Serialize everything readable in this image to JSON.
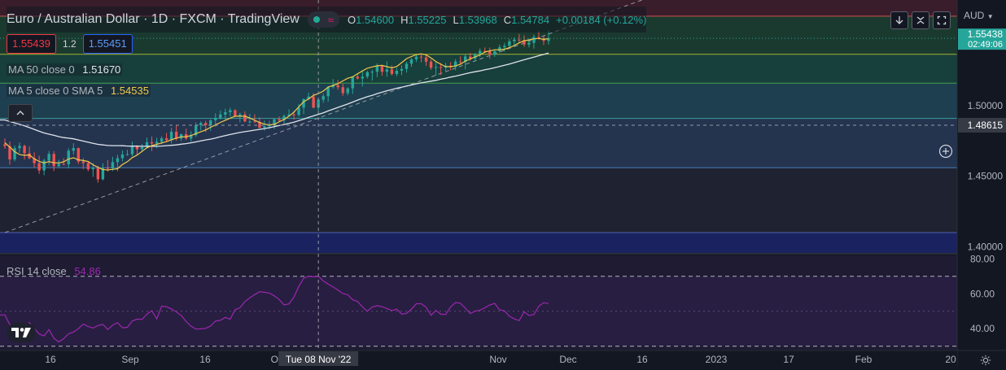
{
  "header": {
    "symbol_title": "Euro / Australian Dollar · 1D · FXCM · TradingView",
    "ohlc": {
      "o_label": "O",
      "o_value": "1.54600",
      "h_label": "H",
      "h_value": "1.55225",
      "l_label": "L",
      "l_value": "1.53968",
      "c_label": "C",
      "c_value": "1.54784",
      "change": "+0.00184 (+0.12%)"
    }
  },
  "trade": {
    "sell_price": "1.55439",
    "spread": "1.2",
    "buy_price": "1.55451"
  },
  "indicators": {
    "ma50_label": "MA 50 close 0",
    "ma50_value": "1.51670",
    "ma5_label": "MA 5 close 0 SMA 5",
    "ma5_value": "1.54535",
    "rsi_label": "RSI 14 close",
    "rsi_value": "54.86"
  },
  "currency_label": "AUD",
  "crosshair": {
    "date_label": "Tue 08 Nov '22",
    "price_label": "1.48615"
  },
  "last_price": {
    "price": "1.55438",
    "countdown": "02:49:06"
  },
  "colors": {
    "up": "#26a69a",
    "down": "#ef5350",
    "ma5": "#f2c94c",
    "ma50": "#e0e3eb",
    "rsi": "#9c27b0",
    "background": "#131722"
  },
  "chart_data": [
    {
      "type": "candlestick",
      "title": "Euro / Australian Dollar · 1D · FXCM · TradingView",
      "ylim": [
        1.395,
        1.575
      ],
      "y_ticks": [
        1.4,
        1.45,
        1.5
      ],
      "x_tick_labels": [
        "16",
        "Sep",
        "16",
        "Oct",
        "Nov",
        "Dec",
        "16",
        "2023",
        "17",
        "Feb",
        "20"
      ],
      "levels": [
        1.41,
        1.456,
        1.491,
        1.516,
        1.5365,
        1.5635
      ],
      "zone_colors": [
        "#3a1d2b",
        "#1b3a2f",
        "#173f3c",
        "#1e3f4f",
        "#24344f",
        "#1f2230",
        "#1a2360"
      ],
      "trendline": {
        "start": [
          0,
          1.41
        ],
        "end": [
          134,
          1.58
        ]
      },
      "crosshair_index": 64,
      "crosshair_price": 1.48615,
      "ohlc": [
        [
          1.4727,
          1.4768,
          1.4694,
          1.4713
        ],
        [
          1.4713,
          1.4746,
          1.4581,
          1.4619
        ],
        [
          1.4619,
          1.4717,
          1.4606,
          1.4699
        ],
        [
          1.4699,
          1.4739,
          1.4667,
          1.4715
        ],
        [
          1.4715,
          1.4724,
          1.4618,
          1.4662
        ],
        [
          1.4662,
          1.4712,
          1.462,
          1.4627
        ],
        [
          1.4627,
          1.4669,
          1.4562,
          1.4592
        ],
        [
          1.4592,
          1.4645,
          1.4517,
          1.4541
        ],
        [
          1.4541,
          1.4624,
          1.4507,
          1.4611
        ],
        [
          1.4611,
          1.4679,
          1.4578,
          1.4658
        ],
        [
          1.4658,
          1.4678,
          1.4536,
          1.4571
        ],
        [
          1.4571,
          1.4617,
          1.4564,
          1.4587
        ],
        [
          1.4587,
          1.4628,
          1.4578,
          1.4584
        ],
        [
          1.4584,
          1.4698,
          1.4555,
          1.4681
        ],
        [
          1.4681,
          1.4734,
          1.4652,
          1.4699
        ],
        [
          1.4699,
          1.4703,
          1.4586,
          1.4604
        ],
        [
          1.4604,
          1.4628,
          1.455,
          1.4593
        ],
        [
          1.4593,
          1.4602,
          1.4535,
          1.4549
        ],
        [
          1.4549,
          1.4593,
          1.4495,
          1.4557
        ],
        [
          1.4557,
          1.4572,
          1.4454,
          1.4478
        ],
        [
          1.4478,
          1.4592,
          1.4471,
          1.4559
        ],
        [
          1.4559,
          1.4614,
          1.4533,
          1.4556
        ],
        [
          1.4556,
          1.4638,
          1.4536,
          1.46
        ],
        [
          1.46,
          1.4652,
          1.4535,
          1.4628
        ],
        [
          1.4628,
          1.4682,
          1.4605,
          1.4654
        ],
        [
          1.4654,
          1.4687,
          1.4645,
          1.4656
        ],
        [
          1.4656,
          1.4745,
          1.4642,
          1.4715
        ],
        [
          1.4715,
          1.4719,
          1.4648,
          1.4691
        ],
        [
          1.4691,
          1.4728,
          1.4671,
          1.4706
        ],
        [
          1.4706,
          1.4774,
          1.4702,
          1.4741
        ],
        [
          1.4741,
          1.4782,
          1.4679,
          1.4732
        ],
        [
          1.4732,
          1.4773,
          1.4699,
          1.4744
        ],
        [
          1.4744,
          1.4782,
          1.4726,
          1.4769
        ],
        [
          1.4769,
          1.4807,
          1.4744,
          1.4755
        ],
        [
          1.4755,
          1.4843,
          1.4733,
          1.4815
        ],
        [
          1.4815,
          1.486,
          1.4752,
          1.4767
        ],
        [
          1.4767,
          1.4802,
          1.4749,
          1.4798
        ],
        [
          1.4798,
          1.4838,
          1.4757,
          1.4767
        ],
        [
          1.4767,
          1.4819,
          1.4744,
          1.4791
        ],
        [
          1.4791,
          1.4881,
          1.4779,
          1.4862
        ],
        [
          1.4862,
          1.4888,
          1.4825,
          1.4877
        ],
        [
          1.4877,
          1.4893,
          1.4813,
          1.4863
        ],
        [
          1.4863,
          1.4904,
          1.4822,
          1.4896
        ],
        [
          1.4896,
          1.4946,
          1.4851,
          1.4914
        ],
        [
          1.4914,
          1.4967,
          1.4902,
          1.4937
        ],
        [
          1.4937,
          1.4978,
          1.4901,
          1.4954
        ],
        [
          1.4954,
          1.4986,
          1.4924,
          1.4968
        ],
        [
          1.4968,
          1.4975,
          1.4923,
          1.4924
        ],
        [
          1.4924,
          1.4951,
          1.4882,
          1.4938
        ],
        [
          1.4938,
          1.4961,
          1.4884,
          1.4888
        ],
        [
          1.4888,
          1.4942,
          1.4873,
          1.4888
        ],
        [
          1.4888,
          1.4939,
          1.4879,
          1.4886
        ],
        [
          1.4886,
          1.4918,
          1.4838,
          1.4844
        ],
        [
          1.4844,
          1.4895,
          1.4822,
          1.4854
        ],
        [
          1.4854,
          1.4893,
          1.4834,
          1.4866
        ],
        [
          1.4866,
          1.4911,
          1.4835,
          1.4904
        ],
        [
          1.4904,
          1.4924,
          1.4883,
          1.4895
        ],
        [
          1.4895,
          1.4939,
          1.4874,
          1.4927
        ],
        [
          1.4927,
          1.4974,
          1.4923,
          1.4938
        ],
        [
          1.4938,
          1.4963,
          1.4901,
          1.4935
        ],
        [
          1.4935,
          1.5011,
          1.4922,
          1.4986
        ],
        [
          1.4986,
          1.5052,
          1.4941,
          1.5047
        ],
        [
          1.5047,
          1.5093,
          1.5042,
          1.5065
        ],
        [
          1.5065,
          1.509,
          1.4982,
          1.4986
        ],
        [
          1.4986,
          1.5046,
          1.4967,
          1.5043
        ],
        [
          1.5043,
          1.5085,
          1.502,
          1.5068
        ],
        [
          1.5068,
          1.5139,
          1.5029,
          1.5132
        ],
        [
          1.5132,
          1.5189,
          1.512,
          1.5145
        ],
        [
          1.5145,
          1.5182,
          1.5113,
          1.5131
        ],
        [
          1.5131,
          1.5156,
          1.507,
          1.5089
        ],
        [
          1.5089,
          1.5131,
          1.5074,
          1.5123
        ],
        [
          1.5123,
          1.5207,
          1.5083,
          1.5206
        ],
        [
          1.5206,
          1.523,
          1.5186,
          1.5193
        ],
        [
          1.5193,
          1.5242,
          1.5137,
          1.5206
        ],
        [
          1.5206,
          1.5248,
          1.5193,
          1.5237
        ],
        [
          1.5237,
          1.5256,
          1.5178,
          1.5241
        ],
        [
          1.5241,
          1.53,
          1.5203,
          1.5283
        ],
        [
          1.5283,
          1.5288,
          1.5212,
          1.5241
        ],
        [
          1.5241,
          1.5315,
          1.5206,
          1.5258
        ],
        [
          1.5258,
          1.5286,
          1.5215,
          1.5225
        ],
        [
          1.5225,
          1.5268,
          1.5209,
          1.5248
        ],
        [
          1.5248,
          1.5288,
          1.5218,
          1.5261
        ],
        [
          1.5261,
          1.5312,
          1.5235,
          1.5298
        ],
        [
          1.5298,
          1.5338,
          1.5276,
          1.5329
        ],
        [
          1.5329,
          1.5366,
          1.5311,
          1.5348
        ],
        [
          1.5348,
          1.5371,
          1.5307,
          1.5343
        ],
        [
          1.5343,
          1.5359,
          1.5283,
          1.5313
        ],
        [
          1.5313,
          1.533,
          1.5255,
          1.5269
        ],
        [
          1.5269,
          1.5305,
          1.5213,
          1.5274
        ],
        [
          1.5274,
          1.5302,
          1.5218,
          1.5271
        ],
        [
          1.5271,
          1.5304,
          1.5246,
          1.5284
        ],
        [
          1.5284,
          1.5309,
          1.5251,
          1.5275
        ],
        [
          1.5275,
          1.5331,
          1.5251,
          1.5313
        ],
        [
          1.5313,
          1.535,
          1.529,
          1.5309
        ],
        [
          1.5309,
          1.5363,
          1.5258,
          1.5349
        ],
        [
          1.5349,
          1.5375,
          1.5317,
          1.5335
        ],
        [
          1.5335,
          1.5374,
          1.5313,
          1.5364
        ],
        [
          1.5364,
          1.5407,
          1.5346,
          1.5389
        ],
        [
          1.5389,
          1.5413,
          1.5376,
          1.5386
        ],
        [
          1.5386,
          1.5412,
          1.5333,
          1.5361
        ],
        [
          1.5361,
          1.5398,
          1.5347,
          1.5387
        ],
        [
          1.5387,
          1.5434,
          1.5376,
          1.5415
        ],
        [
          1.5415,
          1.5446,
          1.5384,
          1.5425
        ],
        [
          1.5425,
          1.5473,
          1.5407,
          1.5457
        ],
        [
          1.5457,
          1.5485,
          1.5418,
          1.5469
        ],
        [
          1.5469,
          1.5509,
          1.5444,
          1.5465
        ],
        [
          1.5465,
          1.5499,
          1.5418,
          1.5434
        ],
        [
          1.5434,
          1.5477,
          1.5414,
          1.5446
        ],
        [
          1.5446,
          1.5504,
          1.5405,
          1.5487
        ],
        [
          1.5487,
          1.5528,
          1.5469,
          1.5478
        ],
        [
          1.5478,
          1.5497,
          1.5431,
          1.546
        ],
        [
          1.546,
          1.5534,
          1.5434,
          1.5478
        ]
      ],
      "ma50": [
        1.4899,
        1.4888,
        1.4878,
        1.4868,
        1.4857,
        1.4845,
        1.4832,
        1.4819,
        1.4807,
        1.4798,
        1.479,
        1.4781,
        1.4774,
        1.477,
        1.4765,
        1.4757,
        1.4749,
        1.4741,
        1.4733,
        1.4726,
        1.4722,
        1.4718,
        1.4717,
        1.4717,
        1.4716,
        1.4714,
        1.4713,
        1.4713,
        1.4712,
        1.4712,
        1.4713,
        1.4712,
        1.4714,
        1.4717,
        1.4719,
        1.4722,
        1.4727,
        1.4731,
        1.4737,
        1.4743,
        1.475,
        1.4757,
        1.4763,
        1.4771,
        1.478,
        1.4788,
        1.4796,
        1.4803,
        1.481,
        1.4816,
        1.4821,
        1.4827,
        1.4832,
        1.4838,
        1.4844,
        1.4852,
        1.4859,
        1.4867,
        1.4874,
        1.4883,
        1.4894,
        1.4905,
        1.4917,
        1.4928,
        1.4939,
        1.495,
        1.4963,
        1.4975,
        1.4988,
        1.5,
        1.5012,
        1.5026,
        1.504,
        1.5052,
        1.5064,
        1.5074,
        1.5086,
        1.5096,
        1.5106,
        1.5115,
        1.5124,
        1.5131,
        1.5139,
        1.5147,
        1.5155,
        1.5162,
        1.5168,
        1.5174,
        1.518,
        1.5188,
        1.5195,
        1.5203,
        1.521,
        1.5218,
        1.5226,
        1.5234,
        1.5241,
        1.5247,
        1.5255,
        1.5262,
        1.527,
        1.5278,
        1.5287,
        1.5296,
        1.5306,
        1.5316,
        1.5326,
        1.5335,
        1.5345,
        1.5355,
        1.5364,
        1.5374
      ],
      "ma5": [
        1.4738,
        1.4707,
        1.4674,
        1.4653,
        1.4648,
        1.4651,
        1.4623,
        1.4605,
        1.4594,
        1.4603,
        1.4595,
        1.4594,
        1.4602,
        1.4622,
        1.4631,
        1.4616,
        1.4611,
        1.4604,
        1.4581,
        1.4563,
        1.4547,
        1.4544,
        1.4549,
        1.4553,
        1.4583,
        1.4603,
        1.4632,
        1.465,
        1.4676,
        1.4702,
        1.4717,
        1.4726,
        1.4736,
        1.4745,
        1.4759,
        1.477,
        1.4779,
        1.478,
        1.4788,
        1.4802,
        1.4815,
        1.4828,
        1.4847,
        1.4864,
        1.4882,
        1.4897,
        1.4912,
        1.4925,
        1.4926,
        1.4925,
        1.4913,
        1.4897,
        1.4881,
        1.4869,
        1.4864,
        1.4868,
        1.4885,
        1.4903,
        1.4925,
        1.4954,
        1.4992,
        1.5028,
        1.5048,
        1.5073,
        1.5086,
        1.5104,
        1.5132,
        1.5144,
        1.5156,
        1.5176,
        1.5195,
        1.5205,
        1.5226,
        1.5247,
        1.5266,
        1.5275,
        1.5283,
        1.5287,
        1.5277,
        1.5268,
        1.5278,
        1.5306,
        1.5334,
        1.5349,
        1.5363,
        1.5368,
        1.5361,
        1.5339,
        1.5313,
        1.5294,
        1.5277,
        1.5277,
        1.5282,
        1.5294,
        1.5317,
        1.5331,
        1.5346,
        1.536,
        1.5381,
        1.5389,
        1.5397,
        1.5397,
        1.5401,
        1.5412,
        1.5427,
        1.5446,
        1.5461,
        1.5467,
        1.5475,
        1.5477,
        1.5471,
        1.5476
      ]
    },
    {
      "type": "line",
      "title": "RSI 14 close",
      "ylim": [
        28,
        82
      ],
      "y_ticks": [
        40,
        60,
        80
      ],
      "bands": [
        30,
        70
      ],
      "values": [
        47.9,
        42.4,
        41.8,
        40.9,
        40.1,
        43.5,
        40.2,
        37.0,
        35.9,
        39.5,
        34.6,
        32.4,
        34.3,
        37.1,
        38.1,
        40.0,
        42.6,
        41.3,
        40.4,
        41.8,
        42.5,
        39.5,
        42.0,
        43.5,
        40.5,
        40.8,
        44.4,
        45.5,
        45.3,
        48.3,
        50.3,
        45.6,
        52.9,
        52.6,
        51.3,
        49.6,
        47.6,
        44.1,
        41.4,
        39.8,
        39.9,
        40.2,
        41.6,
        44.4,
        44.8,
        46.5,
        45.4,
        50.9,
        52.0,
        55.5,
        57.7,
        59.5,
        61.2,
        60.8,
        60.4,
        58.8,
        56.7,
        53.6,
        54.2,
        58.1,
        64.2,
        68.9,
        70.1,
        69.7,
        70.0,
        67.4,
        65.5,
        63.9,
        62.1,
        60.1,
        59.4,
        56.6,
        55.6,
        52.5,
        50.0,
        52.4,
        53.2,
        52.6,
        51.6,
        50.4,
        51.2,
        48.4,
        48.8,
        51.2,
        54.3,
        54.3,
        52.3,
        47.7,
        50.5,
        48.3,
        48.1,
        52.5,
        55.0,
        54.6,
        51.8,
        48.7,
        50.0,
        50.6,
        52.0,
        53.6,
        54.5,
        50.8,
        50.2,
        47.2,
        45.6,
        44.6,
        49.7,
        47.6,
        48.0,
        52.9,
        54.9,
        54.4
      ]
    }
  ]
}
